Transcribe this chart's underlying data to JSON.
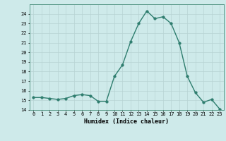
{
  "x": [
    0,
    1,
    2,
    3,
    4,
    5,
    6,
    7,
    8,
    9,
    10,
    11,
    12,
    13,
    14,
    15,
    16,
    17,
    18,
    19,
    20,
    21,
    22,
    23
  ],
  "y": [
    15.3,
    15.3,
    15.2,
    15.1,
    15.2,
    15.5,
    15.6,
    15.5,
    14.9,
    14.9,
    17.5,
    18.7,
    21.1,
    23.0,
    24.3,
    23.5,
    23.7,
    23.0,
    21.0,
    17.5,
    15.8,
    14.8,
    15.1,
    14.1
  ],
  "xlabel": "Humidex (Indice chaleur)",
  "ylim": [
    14,
    25
  ],
  "yticks": [
    14,
    15,
    16,
    17,
    18,
    19,
    20,
    21,
    22,
    23,
    24
  ],
  "xticks": [
    0,
    1,
    2,
    3,
    4,
    5,
    6,
    7,
    8,
    9,
    10,
    11,
    12,
    13,
    14,
    15,
    16,
    17,
    18,
    19,
    20,
    21,
    22,
    23
  ],
  "xticklabels": [
    "0",
    "1",
    "2",
    "3",
    "4",
    "5",
    "6",
    "7",
    "8",
    "9",
    "10",
    "11",
    "12",
    "13",
    "14",
    "15",
    "16",
    "17",
    "18",
    "19",
    "20",
    "21",
    "22",
    "23"
  ],
  "line_color": "#2e7d6e",
  "bg_color": "#ceeaea",
  "grid_color_major": "#b8d4d4",
  "grid_color_minor": "#c8e0e0",
  "marker_size": 2.5,
  "line_width": 1.0
}
